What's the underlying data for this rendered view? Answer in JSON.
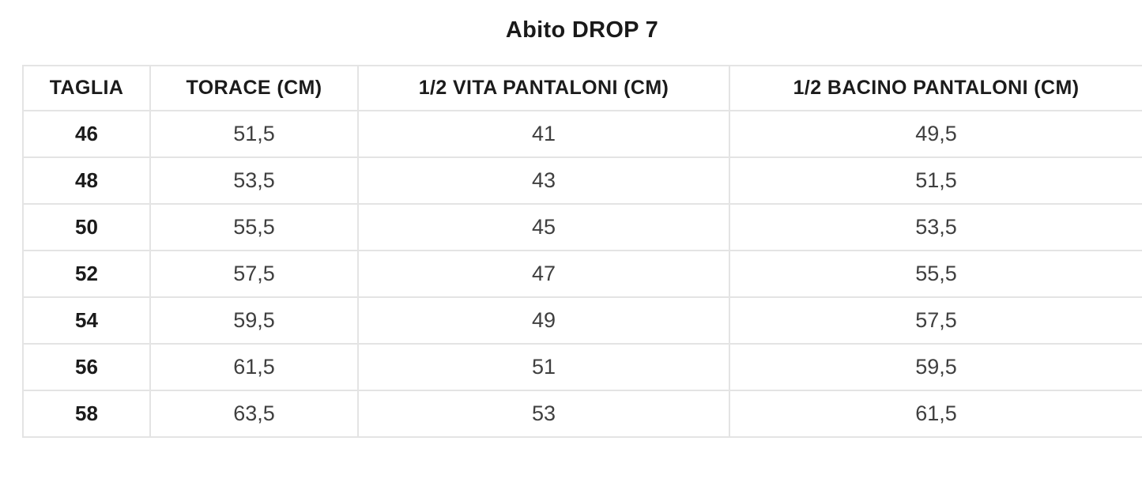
{
  "title": "Abito DROP 7",
  "table": {
    "headers": [
      "TAGLIA",
      "TORACE (CM)",
      "1/2 VITA PANTALONI (CM)",
      "1/2 BACINO PANTALONI (CM)"
    ],
    "rows": [
      [
        "46",
        "51,5",
        "41",
        "49,5"
      ],
      [
        "48",
        "53,5",
        "43",
        "51,5"
      ],
      [
        "50",
        "55,5",
        "45",
        "53,5"
      ],
      [
        "52",
        "57,5",
        "47",
        "55,5"
      ],
      [
        "54",
        "59,5",
        "49",
        "57,5"
      ],
      [
        "56",
        "61,5",
        "51",
        "59,5"
      ],
      [
        "58",
        "63,5",
        "53",
        "61,5"
      ]
    ]
  },
  "colors": {
    "background": "#ffffff",
    "header_text": "#1b1b1b",
    "cell_text": "#3f3f3f",
    "table_border": "#e4e4e4",
    "bottom_divider": "#908f8c"
  },
  "chart_data": {
    "type": "table",
    "title": "Abito DROP 7",
    "columns": [
      "TAGLIA",
      "TORACE (CM)",
      "1/2 VITA PANTALONI (CM)",
      "1/2 BACINO PANTALONI (CM)"
    ],
    "rows": [
      [
        46,
        51.5,
        41,
        49.5
      ],
      [
        48,
        53.5,
        43,
        51.5
      ],
      [
        50,
        55.5,
        45,
        53.5
      ],
      [
        52,
        57.5,
        47,
        55.5
      ],
      [
        54,
        59.5,
        49,
        57.5
      ],
      [
        56,
        61.5,
        51,
        59.5
      ],
      [
        58,
        63.5,
        53,
        61.5
      ]
    ],
    "decimal_separator": ",",
    "notes": "Size chart table; first column sizes are bold, measurement values in cm"
  }
}
